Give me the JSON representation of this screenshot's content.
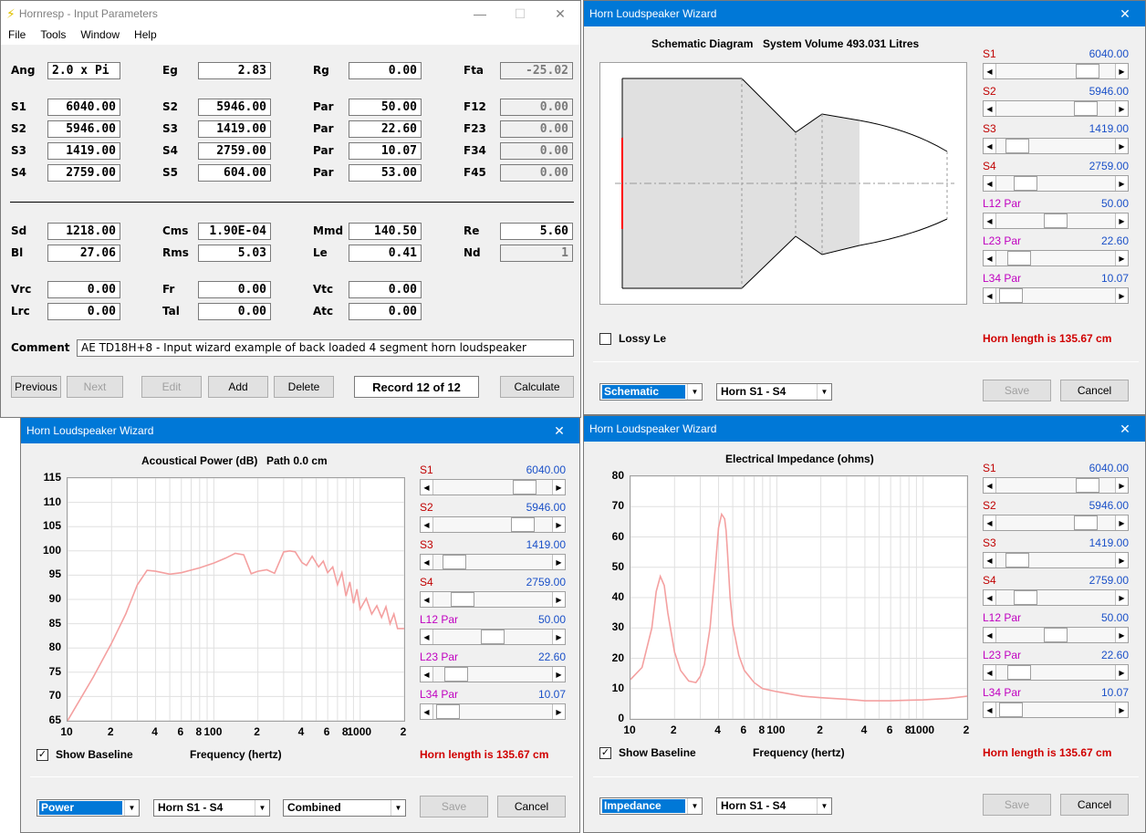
{
  "hornresp": {
    "title": "Hornresp - Input Parameters",
    "menu": [
      "File",
      "Tools",
      "Window",
      "Help"
    ],
    "params": {
      "ang_label": "Ang",
      "ang": "2.0 x Pi",
      "eg_label": "Eg",
      "eg": "2.83",
      "rg_label": "Rg",
      "rg": "0.00",
      "fta_label": "Fta",
      "fta": "-25.02",
      "s1_label": "S1",
      "s1": "6040.00",
      "s2_label": "S2",
      "s2": "5946.00",
      "s3_label": "S3",
      "s3": "1419.00",
      "s4_label": "S4",
      "s4": "2759.00",
      "s2b_label": "S2",
      "s2b": "5946.00",
      "s3b_label": "S3",
      "s3b": "1419.00",
      "s4b_label": "S4",
      "s4b": "2759.00",
      "s5_label": "S5",
      "s5": "604.00",
      "par_label": "Par",
      "par1": "50.00",
      "par2": "22.60",
      "par3": "10.07",
      "par4": "53.00",
      "f12_label": "F12",
      "f12": "0.00",
      "f23_label": "F23",
      "f23": "0.00",
      "f34_label": "F34",
      "f34": "0.00",
      "f45_label": "F45",
      "f45": "0.00",
      "sd_label": "Sd",
      "sd": "1218.00",
      "cms_label": "Cms",
      "cms": "1.90E-04",
      "mmd_label": "Mmd",
      "mmd": "140.50",
      "re_label": "Re",
      "re": "5.60",
      "bl_label": "Bl",
      "bl": "27.06",
      "rms_label": "Rms",
      "rms": "5.03",
      "le_label": "Le",
      "le": "0.41",
      "nd_label": "Nd",
      "nd": "1",
      "vrc_label": "Vrc",
      "vrc": "0.00",
      "fr_label": "Fr",
      "fr": "0.00",
      "vtc_label": "Vtc",
      "vtc": "0.00",
      "lrc_label": "Lrc",
      "lrc": "0.00",
      "tal_label": "Tal",
      "tal": "0.00",
      "atc_label": "Atc",
      "atc": "0.00"
    },
    "comment_label": "Comment",
    "comment": "AE TD18H+8 - Input wizard example of back loaded 4 segment horn loudspeaker",
    "buttons": {
      "previous": "Previous",
      "next": "Next",
      "edit": "Edit",
      "add": "Add",
      "delete": "Delete",
      "calculate": "Calculate"
    },
    "record": "Record 12 of 12"
  },
  "wizard_common": {
    "title": "Horn Loudspeaker Wizard",
    "sliders": [
      {
        "name": "S1",
        "value": "6040.00",
        "color": "#c00000"
      },
      {
        "name": "S2",
        "value": "5946.00",
        "color": "#c00000"
      },
      {
        "name": "S3",
        "value": "1419.00",
        "color": "#c00000"
      },
      {
        "name": "S4",
        "value": "2759.00",
        "color": "#c00000"
      },
      {
        "name": "L12  Par",
        "value": "50.00",
        "color": "#c000c0"
      },
      {
        "name": "L23  Par",
        "value": "22.60",
        "color": "#c000c0"
      },
      {
        "name": "L34  Par",
        "value": "10.07",
        "color": "#c000c0"
      }
    ],
    "horn_length": "Horn length is 135.67 cm",
    "save": "Save",
    "cancel": "Cancel",
    "segment_combo": "Horn S1 - S4",
    "show_baseline": "Show Baseline",
    "frequency_label": "Frequency (hertz)",
    "x_ticks": [
      "10",
      "2",
      "4",
      "6",
      "8",
      "100",
      "2",
      "4",
      "6",
      "8",
      "1000",
      "2"
    ]
  },
  "schematic_window": {
    "heading": "Schematic Diagram",
    "volume": "System Volume 493.031 Litres",
    "lossy_le": "Lossy Le",
    "view_combo": "Schematic"
  },
  "power_window": {
    "heading": "Acoustical Power (dB)",
    "path": "Path 0.0 cm",
    "view_combo": "Power",
    "mode_combo": "Combined"
  },
  "impedance_window": {
    "heading": "Electrical Impedance (ohms)",
    "view_combo": "Impedance"
  },
  "chart_data": [
    {
      "type": "line",
      "title": "Acoustical Power (dB)",
      "xlabel": "Frequency (hertz)",
      "ylabel": "",
      "xscale": "log",
      "xlim": [
        10,
        2000
      ],
      "ylim": [
        65,
        115
      ],
      "y_ticks": [
        115,
        110,
        105,
        100,
        95,
        90,
        85,
        80,
        75,
        70,
        65
      ],
      "series": [
        {
          "x": [
            10,
            15,
            20,
            25,
            30,
            35,
            40,
            50,
            60,
            80,
            100,
            120,
            140,
            160,
            180,
            200,
            230,
            260,
            300,
            330,
            360,
            400,
            430,
            470,
            520,
            560,
            600,
            650,
            700,
            750,
            800,
            850,
            900,
            950,
            1000,
            1100,
            1200,
            1300,
            1400,
            1500,
            1600,
            1700,
            1800,
            2000
          ],
          "y": [
            65,
            74,
            81,
            87,
            93,
            96,
            95.8,
            95.2,
            95.5,
            96.5,
            97.5,
            98.5,
            99.5,
            99.2,
            95.3,
            95.8,
            96.1,
            95.4,
            99.8,
            100.0,
            99.8,
            97.6,
            97.0,
            98.9,
            96.7,
            97.9,
            95.5,
            96.7,
            93.0,
            95.5,
            90.7,
            93.6,
            89.2,
            92.1,
            88.0,
            90.2,
            87.0,
            88.7,
            86.3,
            88.5,
            85.0,
            87.0,
            84.0,
            84.0
          ]
        }
      ]
    },
    {
      "type": "line",
      "title": "Electrical Impedance (ohms)",
      "xlabel": "Frequency (hertz)",
      "ylabel": "",
      "xscale": "log",
      "xlim": [
        10,
        2000
      ],
      "ylim": [
        0,
        80
      ],
      "y_ticks": [
        80,
        70,
        60,
        50,
        40,
        30,
        20,
        10,
        0
      ],
      "series": [
        {
          "x": [
            10,
            12,
            14,
            15,
            16,
            17,
            18,
            20,
            22,
            25,
            28,
            30,
            32,
            35,
            38,
            40,
            42,
            44,
            45,
            46,
            48,
            50,
            55,
            60,
            70,
            80,
            100,
            150,
            200,
            300,
            400,
            600,
            800,
            1000,
            1500,
            2000
          ],
          "y": [
            13,
            17,
            30,
            42,
            47,
            44,
            35,
            22,
            16,
            12.5,
            12,
            14,
            18,
            30,
            50,
            63,
            67.5,
            66,
            62,
            55,
            40,
            31,
            21,
            16,
            12,
            10,
            9,
            7.5,
            7,
            6.5,
            6,
            6,
            6.2,
            6.3,
            6.8,
            7.5
          ]
        }
      ]
    }
  ]
}
